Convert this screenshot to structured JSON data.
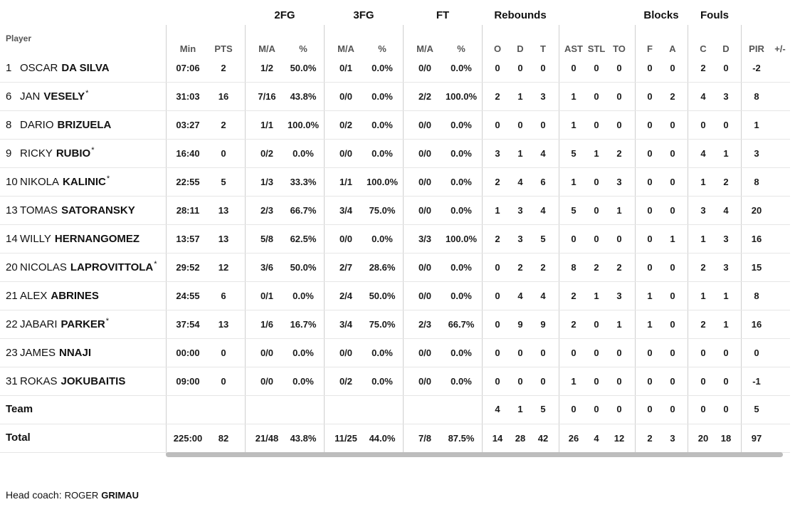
{
  "group_headers": [
    "2FG",
    "3FG",
    "FT",
    "Rebounds",
    "Blocks",
    "Fouls"
  ],
  "player_header": "Player",
  "sub_headers": [
    "Min",
    "PTS",
    "M/A",
    "%",
    "M/A",
    "%",
    "M/A",
    "%",
    "O",
    "D",
    "T",
    "AST",
    "STL",
    "TO",
    "F",
    "A",
    "C",
    "D",
    "PIR",
    "+/-"
  ],
  "players": [
    {
      "num": "1",
      "first": "OSCAR",
      "last": "DA SILVA",
      "star": "",
      "stats": [
        "07:06",
        "2",
        "1/2",
        "50.0%",
        "0/1",
        "0.0%",
        "0/0",
        "0.0%",
        "0",
        "0",
        "0",
        "0",
        "0",
        "0",
        "0",
        "0",
        "2",
        "0",
        "-2",
        ""
      ]
    },
    {
      "num": "6",
      "first": "JAN",
      "last": "VESELY",
      "star": "*",
      "stats": [
        "31:03",
        "16",
        "7/16",
        "43.8%",
        "0/0",
        "0.0%",
        "2/2",
        "100.0%",
        "2",
        "1",
        "3",
        "1",
        "0",
        "0",
        "0",
        "2",
        "4",
        "3",
        "8",
        ""
      ]
    },
    {
      "num": "8",
      "first": "DARIO",
      "last": "BRIZUELA",
      "star": "",
      "stats": [
        "03:27",
        "2",
        "1/1",
        "100.0%",
        "0/2",
        "0.0%",
        "0/0",
        "0.0%",
        "0",
        "0",
        "0",
        "1",
        "0",
        "0",
        "0",
        "0",
        "0",
        "0",
        "1",
        ""
      ]
    },
    {
      "num": "9",
      "first": "RICKY",
      "last": "RUBIO",
      "star": "*",
      "stats": [
        "16:40",
        "0",
        "0/2",
        "0.0%",
        "0/0",
        "0.0%",
        "0/0",
        "0.0%",
        "3",
        "1",
        "4",
        "5",
        "1",
        "2",
        "0",
        "0",
        "4",
        "1",
        "3",
        ""
      ]
    },
    {
      "num": "10",
      "first": "NIKOLA",
      "last": "KALINIC",
      "star": "*",
      "stats": [
        "22:55",
        "5",
        "1/3",
        "33.3%",
        "1/1",
        "100.0%",
        "0/0",
        "0.0%",
        "2",
        "4",
        "6",
        "1",
        "0",
        "3",
        "0",
        "0",
        "1",
        "2",
        "8",
        ""
      ]
    },
    {
      "num": "13",
      "first": "TOMAS",
      "last": "SATORANSKY",
      "star": "",
      "stats": [
        "28:11",
        "13",
        "2/3",
        "66.7%",
        "3/4",
        "75.0%",
        "0/0",
        "0.0%",
        "1",
        "3",
        "4",
        "5",
        "0",
        "1",
        "0",
        "0",
        "3",
        "4",
        "20",
        ""
      ]
    },
    {
      "num": "14",
      "first": "WILLY",
      "last": "HERNANGOMEZ",
      "star": "",
      "stats": [
        "13:57",
        "13",
        "5/8",
        "62.5%",
        "0/0",
        "0.0%",
        "3/3",
        "100.0%",
        "2",
        "3",
        "5",
        "0",
        "0",
        "0",
        "0",
        "1",
        "1",
        "3",
        "16",
        ""
      ]
    },
    {
      "num": "20",
      "first": "NICOLAS",
      "last": "LAPROVITTOLA",
      "star": "*",
      "stats": [
        "29:52",
        "12",
        "3/6",
        "50.0%",
        "2/7",
        "28.6%",
        "0/0",
        "0.0%",
        "0",
        "2",
        "2",
        "8",
        "2",
        "2",
        "0",
        "0",
        "2",
        "3",
        "15",
        ""
      ]
    },
    {
      "num": "21",
      "first": "ALEX",
      "last": "ABRINES",
      "star": "",
      "stats": [
        "24:55",
        "6",
        "0/1",
        "0.0%",
        "2/4",
        "50.0%",
        "0/0",
        "0.0%",
        "0",
        "4",
        "4",
        "2",
        "1",
        "3",
        "1",
        "0",
        "1",
        "1",
        "8",
        ""
      ]
    },
    {
      "num": "22",
      "first": "JABARI",
      "last": "PARKER",
      "star": "*",
      "stats": [
        "37:54",
        "13",
        "1/6",
        "16.7%",
        "3/4",
        "75.0%",
        "2/3",
        "66.7%",
        "0",
        "9",
        "9",
        "2",
        "0",
        "1",
        "1",
        "0",
        "2",
        "1",
        "16",
        ""
      ]
    },
    {
      "num": "23",
      "first": "JAMES",
      "last": "NNAJI",
      "star": "",
      "stats": [
        "00:00",
        "0",
        "0/0",
        "0.0%",
        "0/0",
        "0.0%",
        "0/0",
        "0.0%",
        "0",
        "0",
        "0",
        "0",
        "0",
        "0",
        "0",
        "0",
        "0",
        "0",
        "0",
        ""
      ]
    },
    {
      "num": "31",
      "first": "ROKAS",
      "last": "JOKUBAITIS",
      "star": "",
      "stats": [
        "09:00",
        "0",
        "0/0",
        "0.0%",
        "0/2",
        "0.0%",
        "0/0",
        "0.0%",
        "0",
        "0",
        "0",
        "1",
        "0",
        "0",
        "0",
        "0",
        "0",
        "0",
        "-1",
        ""
      ]
    }
  ],
  "team_row": {
    "label": "Team",
    "stats": [
      "",
      "",
      "",
      "",
      "",
      "",
      "",
      "",
      "4",
      "1",
      "5",
      "0",
      "0",
      "0",
      "0",
      "0",
      "0",
      "0",
      "5",
      ""
    ]
  },
  "total_row": {
    "label": "Total",
    "stats": [
      "225:00",
      "82",
      "21/48",
      "43.8%",
      "11/25",
      "44.0%",
      "7/8",
      "87.5%",
      "14",
      "28",
      "42",
      "26",
      "4",
      "12",
      "2",
      "3",
      "20",
      "18",
      "97",
      ""
    ]
  },
  "coach": {
    "label": "Head coach:",
    "first": "ROGER",
    "last": "GRIMAU"
  }
}
